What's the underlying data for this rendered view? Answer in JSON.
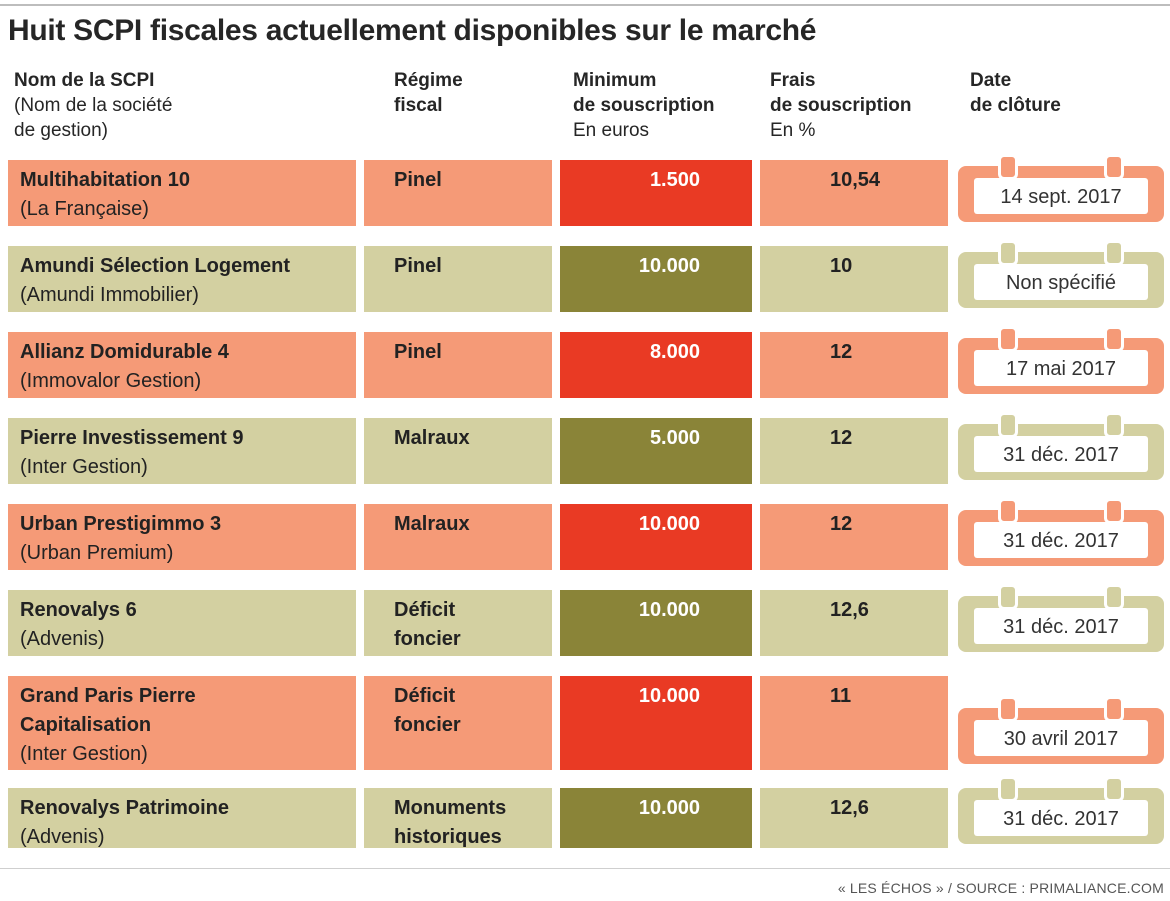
{
  "title": "Huit SCPI fiscales actuellement disponibles sur le marché",
  "headers": {
    "name": [
      "Nom de la SCPI",
      "(Nom de la société",
      "de gestion)"
    ],
    "regime": [
      "Régime",
      "fiscal"
    ],
    "minimum": [
      "Minimum",
      "de souscription",
      "En euros"
    ],
    "frais": [
      "Frais",
      "de souscription",
      "En %"
    ],
    "date": [
      "Date",
      "de clôture"
    ]
  },
  "rows": [
    {
      "style": "orange",
      "name": [
        "Multihabitation 10"
      ],
      "manager": "(La Française)",
      "regime": [
        "Pinel"
      ],
      "minimum": "1.500",
      "frais": "10,54",
      "date": "14 sept. 2017"
    },
    {
      "style": "olive",
      "name": [
        "Amundi Sélection Logement"
      ],
      "manager": "(Amundi Immobilier)",
      "regime": [
        "Pinel"
      ],
      "minimum": "10.000",
      "frais": "10",
      "date": "Non spécifié"
    },
    {
      "style": "orange",
      "name": [
        "Allianz Domidurable 4"
      ],
      "manager": "(Immovalor Gestion)",
      "regime": [
        "Pinel"
      ],
      "minimum": "8.000",
      "frais": "12",
      "date": "17 mai 2017"
    },
    {
      "style": "olive",
      "name": [
        "Pierre Investissement 9"
      ],
      "manager": "(Inter Gestion)",
      "regime": [
        "Malraux"
      ],
      "minimum": "5.000",
      "frais": "12",
      "date": "31 déc. 2017"
    },
    {
      "style": "orange",
      "name": [
        "Urban Prestigimmo 3"
      ],
      "manager": "(Urban Premium)",
      "regime": [
        "Malraux"
      ],
      "minimum": "10.000",
      "frais": "12",
      "date": "31 déc. 2017"
    },
    {
      "style": "olive",
      "name": [
        "Renovalys 6"
      ],
      "manager": "(Advenis)",
      "regime": [
        "Déficit",
        "foncier"
      ],
      "minimum": "10.000",
      "frais": "12,6",
      "date": "31 déc. 2017"
    },
    {
      "style": "orange",
      "name": [
        "Grand Paris Pierre",
        "Capitalisation"
      ],
      "manager": "(Inter Gestion)",
      "regime": [
        "Déficit",
        "foncier"
      ],
      "minimum": "10.000",
      "frais": "11",
      "date": "30 avril 2017"
    },
    {
      "style": "olive",
      "name": [
        "Renovalys Patrimoine"
      ],
      "manager": "(Advenis)",
      "regime": [
        "Monuments",
        "historiques"
      ],
      "minimum": "10.000",
      "frais": "12,6",
      "date": "31 déc. 2017"
    }
  ],
  "source": "« LES ÉCHOS » / SOURCE : PRIMALIANCE.COM",
  "colors": {
    "orange_light": "#f59a77",
    "orange_dark": "#e93a24",
    "olive_light": "#d3d0a1",
    "olive_dark": "#8a8438"
  }
}
